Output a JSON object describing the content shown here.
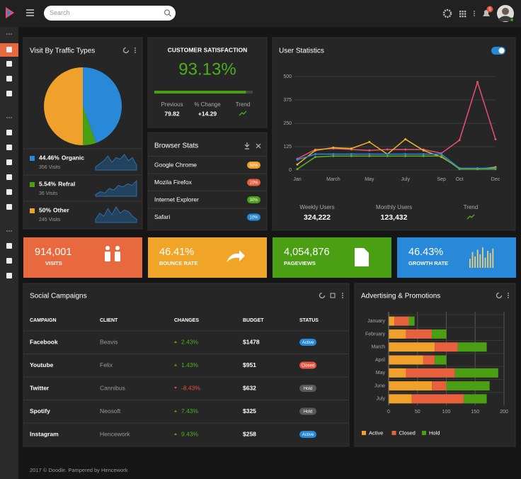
{
  "topbar": {
    "search_placeholder": "Search",
    "notifications": "5"
  },
  "satisfaction": {
    "title": "CUSTOMER SATISFACTION",
    "value": 93.13,
    "value_label": "93.13%",
    "stats": [
      {
        "label": "Previous",
        "value": "79.82"
      },
      {
        "label": "% Change",
        "value": "+14.29"
      },
      {
        "label": "Trend"
      }
    ]
  },
  "browser": {
    "title": "Browser Stats",
    "rows": [
      {
        "name": "Google Chrome",
        "share": "50%",
        "color": "#f0a12b"
      },
      {
        "name": "Mozila Firefox",
        "share": "10%",
        "color": "#e8603e"
      },
      {
        "name": "Internet Explorer",
        "share": "30%",
        "color": "#4a9f12"
      },
      {
        "name": "Safari",
        "share": "10%",
        "color": "#2789d8"
      }
    ]
  },
  "user_footer": [
    {
      "label": "Weekly Users",
      "value": "324,222"
    },
    {
      "label": "Monthly Users",
      "value": "123,432"
    },
    {
      "label": "Trend"
    }
  ],
  "tiles": [
    {
      "value": "914,001",
      "label": "VISITS",
      "color": "#e8693e"
    },
    {
      "value": "46.41%",
      "label": "BOUNCE RATE",
      "color": "#f0a529"
    },
    {
      "value": "4,054,876",
      "label": "PAGEVIEWS",
      "color": "#4a9f12"
    },
    {
      "value": "46.43%",
      "label": "GROWTH RATE",
      "color": "#2789d8"
    }
  ],
  "campaigns": {
    "title": "Social Campaigns",
    "columns": [
      "CAMPAIGN",
      "CLIENT",
      "CHANGES",
      "BUDGET",
      "STATUS"
    ],
    "rows": [
      [
        "Facebook",
        "Beavis",
        "2.43%",
        "$1478",
        "Active"
      ],
      [
        "Youtube",
        "Felix",
        "1.43%",
        "$951",
        "Closed"
      ],
      [
        "Twitter",
        "Cannibus",
        "-8.43%",
        "$632",
        "Hold"
      ],
      [
        "Spotify",
        "Neosoft",
        "7.43%",
        "$325",
        "Hold"
      ],
      [
        "Instagram",
        "Hencework",
        "9.43%",
        "$258",
        "Active"
      ]
    ],
    "status_colors": [
      "#2789d8",
      "#e8553e",
      "#5a5a5a",
      "#5a5a5a",
      "#2789d8"
    ]
  },
  "footer": "2017 © Doodle. Pampered by Hencework",
  "chart_data": [
    {
      "type": "pie",
      "title": "Visit By Traffic Types",
      "categories": [
        "Organic",
        "Refral",
        "Other"
      ],
      "values": [
        44.46,
        5.54,
        50
      ],
      "value_labels": [
        "44.46%",
        "5.54%",
        "50%"
      ],
      "colors": [
        "#2789d8",
        "#4a9f12",
        "#f0a12b"
      ],
      "visits": [
        "356 Visits",
        "36 Visits",
        "245 Visits"
      ],
      "sparklines": [
        [
          2,
          4,
          6,
          9,
          5,
          8,
          7,
          10,
          6,
          8,
          3
        ],
        [
          1,
          3,
          2,
          5,
          4,
          7,
          6,
          8,
          7,
          10
        ],
        [
          2,
          6,
          4,
          9,
          5,
          10,
          6,
          8,
          7,
          4,
          2
        ]
      ]
    },
    {
      "type": "line",
      "title": "User Statistics",
      "categories": [
        "Jan",
        null,
        "March",
        null,
        "May",
        null,
        "July",
        null,
        "Sep",
        "Oct",
        null,
        "Dec"
      ],
      "series": [
        {
          "color": "#e8506e",
          "values": [
            60,
            110,
            115,
            110,
            105,
            110,
            110,
            110,
            90,
            160,
            470,
            165
          ]
        },
        {
          "color": "#f0b429",
          "values": [
            30,
            105,
            120,
            115,
            150,
            85,
            165,
            105,
            70,
            10,
            5,
            15
          ]
        },
        {
          "color": "#2789d8",
          "values": [
            55,
            85,
            85,
            85,
            85,
            85,
            85,
            85,
            85,
            10,
            10,
            10
          ]
        },
        {
          "color": "#5fae2a",
          "values": [
            5,
            70,
            75,
            75,
            75,
            75,
            75,
            75,
            75,
            5,
            5,
            5
          ]
        }
      ],
      "ylim": [
        0,
        500
      ],
      "yticks": [
        0,
        125,
        250,
        375,
        500
      ],
      "grid": true
    },
    {
      "type": "bar",
      "orientation": "horizontal",
      "stacked": true,
      "title": "Advertising & Promotions",
      "categories": [
        "January",
        "February",
        "March",
        "April",
        "May",
        "June",
        "July"
      ],
      "series": [
        {
          "name": "Active",
          "color": "#f0a12b",
          "values": [
            10,
            30,
            80,
            60,
            30,
            75,
            40
          ]
        },
        {
          "name": "Closed",
          "color": "#e8603e",
          "values": [
            25,
            45,
            40,
            20,
            85,
            25,
            90
          ]
        },
        {
          "name": "Hold",
          "color": "#4a9f12",
          "values": [
            10,
            25,
            50,
            20,
            75,
            75,
            40
          ]
        }
      ],
      "xlim": [
        0,
        200
      ],
      "xticks": [
        0,
        50,
        100,
        150,
        200
      ],
      "grid": true,
      "legend": "bottom"
    }
  ]
}
